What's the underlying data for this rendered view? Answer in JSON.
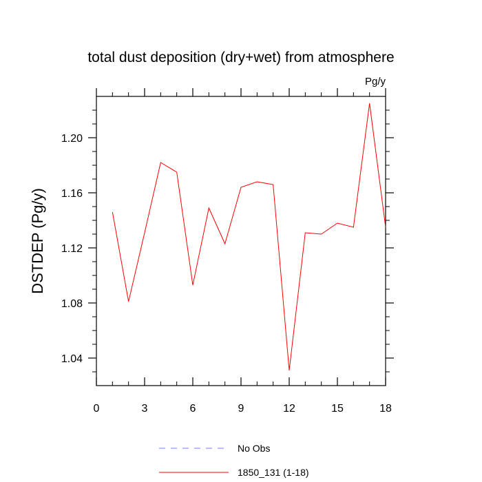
{
  "chart_data": {
    "type": "line",
    "title": "total dust deposition (dry+wet) from atmosphere",
    "units_label": "Pg/y",
    "xlabel": "",
    "ylabel": "DSTDEP  (Pg/y)",
    "xlim": [
      0,
      18
    ],
    "ylim": [
      1.02,
      1.23
    ],
    "xticks": [
      0,
      3,
      6,
      9,
      12,
      15,
      18
    ],
    "xtick_labels": [
      "0",
      "3",
      "6",
      "9",
      "12",
      "15",
      "18"
    ],
    "yticks": [
      1.04,
      1.08,
      1.12,
      1.16,
      1.2
    ],
    "ytick_labels": [
      "1.04",
      "1.08",
      "1.12",
      "1.16",
      "1.20"
    ],
    "grid": false,
    "legend_position": "bottom",
    "series": [
      {
        "name": "1850_131 (1-18)",
        "color": "#ff0000",
        "style": "solid",
        "x": [
          1,
          2,
          3,
          4,
          5,
          6,
          7,
          8,
          9,
          10,
          11,
          12,
          13,
          14,
          15,
          16,
          17,
          18
        ],
        "y": [
          1.146,
          1.081,
          1.131,
          1.182,
          1.175,
          1.093,
          1.149,
          1.123,
          1.164,
          1.168,
          1.166,
          1.031,
          1.131,
          1.13,
          1.138,
          1.135,
          1.225,
          1.135
        ]
      }
    ],
    "legend": [
      {
        "label": "No Obs",
        "color": "#7777ff",
        "style": "dashed"
      },
      {
        "label": "1850_131 (1-18)",
        "color": "#ff0000",
        "style": "solid"
      }
    ]
  }
}
